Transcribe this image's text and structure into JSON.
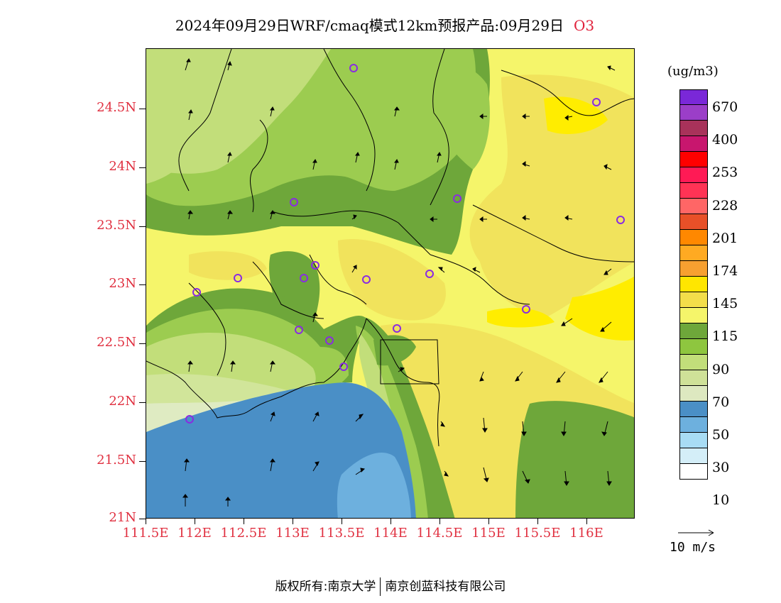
{
  "title": {
    "text": "2024年09月29日WRF/cmaq模式12km预报产品:09月29日",
    "pollutant": "O3"
  },
  "map": {
    "lat_labels": [
      "24.5N",
      "24N",
      "23.5N",
      "23N",
      "22.5N",
      "22N",
      "21.5N",
      "21N"
    ],
    "lon_labels": [
      "111.5E",
      "112E",
      "112.5E",
      "113E",
      "113.5E",
      "114E",
      "114.5E",
      "115E",
      "115.5E",
      "116E"
    ],
    "fill_colors": {
      "yellow_light": "#f5f56a",
      "yellow_tan": "#f1e35c",
      "yellow_bright": "#ffed00",
      "green_dark": "#6ea73a",
      "green_mid": "#9ccc50",
      "green_light": "#c2de7a",
      "green_pale": "#d1e59a",
      "green_palest": "#dfebc2",
      "blue_dark": "#4a8fc6",
      "blue_mid": "#6db0de"
    },
    "station_marker_color": "#8a2be2"
  },
  "colorbar": {
    "unit": "(ug/m3)",
    "colors": [
      "#7a28d8",
      "#9b3ec8",
      "#a8325a",
      "#c8166e",
      "#ff0000",
      "#ff1a55",
      "#ff3355",
      "#ff6666",
      "#e85028",
      "#ff8800",
      "#ffaa22",
      "#f7a030",
      "#ffe600",
      "#f3de4a",
      "#f5f56a",
      "#6ea73a",
      "#8ec63f",
      "#c2de7a",
      "#cfe198",
      "#dde8c0",
      "#4a8fc6",
      "#6db0de",
      "#a8dcf4",
      "#d4eef8",
      "#ffffff"
    ],
    "labels": [
      "670",
      "400",
      "253",
      "228",
      "201",
      "174",
      "145",
      "115",
      "90",
      "70",
      "50",
      "30",
      "10"
    ]
  },
  "wind_reference": {
    "label": "10 m/s"
  },
  "copyright": {
    "left": "版权所有:南京大学",
    "right": "南京创蓝科技有限公司"
  }
}
